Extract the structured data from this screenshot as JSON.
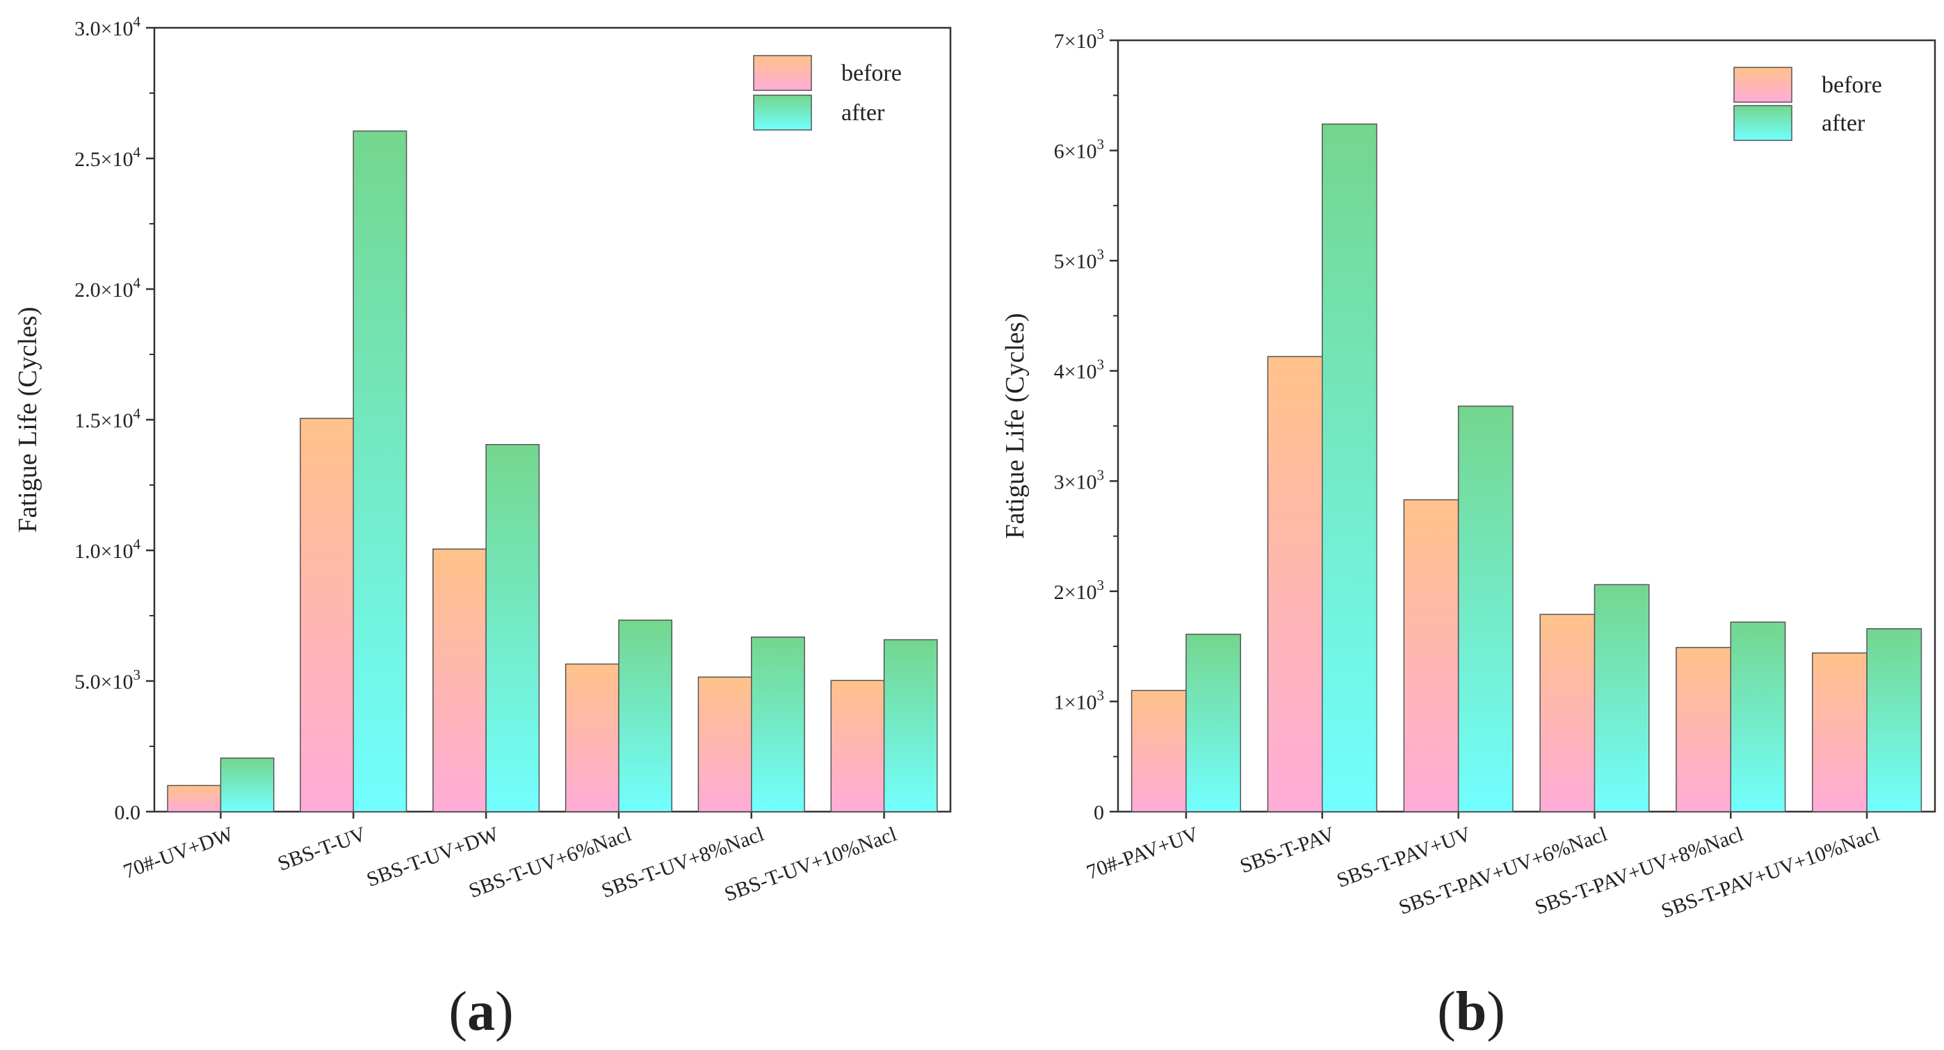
{
  "chart_data": [
    {
      "panel": "(a)",
      "type": "bar",
      "ylabel": "Fatigue Life (Cycles)",
      "xlabel": "",
      "ylim": [
        0,
        30000
      ],
      "y_ticks": [
        {
          "value": 0,
          "base": "0.0",
          "exp": ""
        },
        {
          "value": 5000,
          "base": "5.0×10",
          "exp": "3"
        },
        {
          "value": 10000,
          "base": "1.0×10",
          "exp": "4"
        },
        {
          "value": 15000,
          "base": "1.5×10",
          "exp": "4"
        },
        {
          "value": 20000,
          "base": "2.0×10",
          "exp": "4"
        },
        {
          "value": 25000,
          "base": "2.5×10",
          "exp": "4"
        },
        {
          "value": 30000,
          "base": "3.0×10",
          "exp": "4"
        }
      ],
      "categories": [
        "70#-UV+DW",
        "SBS-T-UV",
        "SBS-T-UV+DW",
        "SBS-T-UV+6%Nacl",
        "SBS-T-UV+8%Nacl",
        "SBS-T-UV+10%Nacl"
      ],
      "series": [
        {
          "name": "before",
          "values": [
            1000,
            15050,
            10050,
            5650,
            5150,
            5020
          ]
        },
        {
          "name": "after",
          "values": [
            2050,
            26050,
            14050,
            7330,
            6680,
            6580
          ]
        }
      ],
      "legend_position": "top-right"
    },
    {
      "panel": "(b)",
      "type": "bar",
      "ylabel": "Fatigue Life (Cycles)",
      "xlabel": "",
      "ylim": [
        0,
        7000
      ],
      "y_ticks": [
        {
          "value": 0,
          "base": "0",
          "exp": ""
        },
        {
          "value": 1000,
          "base": "1×10",
          "exp": "3"
        },
        {
          "value": 2000,
          "base": "2×10",
          "exp": "3"
        },
        {
          "value": 3000,
          "base": "3×10",
          "exp": "3"
        },
        {
          "value": 4000,
          "base": "4×10",
          "exp": "3"
        },
        {
          "value": 5000,
          "base": "5×10",
          "exp": "3"
        },
        {
          "value": 6000,
          "base": "6×10",
          "exp": "3"
        },
        {
          "value": 7000,
          "base": "7×10",
          "exp": "3"
        }
      ],
      "categories": [
        "70#-PAV+UV",
        "SBS-T-PAV",
        "SBS-T-PAV+UV",
        "SBS-T-PAV+UV+6%Nacl",
        "SBS-T-PAV+UV+8%Nacl",
        "SBS-T-PAV+UV+10%Nacl"
      ],
      "series": [
        {
          "name": "before",
          "values": [
            1100,
            4130,
            2830,
            1790,
            1490,
            1440
          ]
        },
        {
          "name": "after",
          "values": [
            1610,
            6240,
            3680,
            2060,
            1720,
            1660
          ]
        }
      ],
      "legend_position": "top-right"
    }
  ],
  "colors": {
    "before_top": "#FFC28A",
    "before_bottom": "#FFACD8",
    "after_top": "#74D68E",
    "after_bottom": "#72FFFF",
    "axis": "#333333"
  }
}
